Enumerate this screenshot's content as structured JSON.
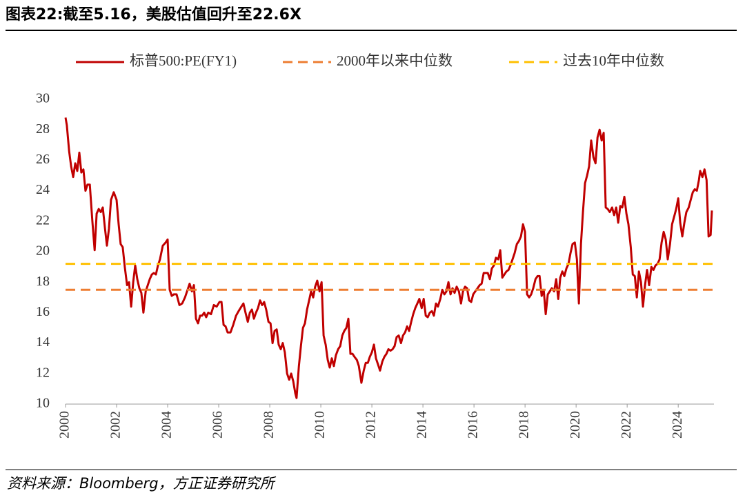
{
  "title": "图表22:截至5.16，美股估值回升至22.6X",
  "source": "资料来源：Bloomberg，方正证券研究所",
  "chart_data": {
    "type": "line",
    "xlim": [
      2000,
      2025.4
    ],
    "xticks": [
      2000,
      2002,
      2004,
      2006,
      2008,
      2010,
      2012,
      2014,
      2016,
      2018,
      2020,
      2022,
      2024
    ],
    "ylim": [
      10,
      30
    ],
    "yticks": [
      10,
      12,
      14,
      16,
      18,
      20,
      22,
      24,
      26,
      28,
      30
    ],
    "grid": false,
    "legend": "top",
    "series": [
      {
        "name": "标普500:PE(FY1)",
        "color": "#c00000",
        "x": [
          2000.0,
          2000.05,
          2000.14,
          2000.22,
          2000.3,
          2000.38,
          2000.46,
          2000.54,
          2000.62,
          2000.7,
          2000.78,
          2000.86,
          2000.95,
          2001.05,
          2001.14,
          2001.22,
          2001.3,
          2001.38,
          2001.46,
          2001.54,
          2001.62,
          2001.7,
          2001.78,
          2001.89,
          2002.0,
          2002.08,
          2002.16,
          2002.24,
          2002.32,
          2002.41,
          2002.49,
          2002.57,
          2002.65,
          2002.73,
          2002.81,
          2002.89,
          2002.97,
          2003.05,
          2003.14,
          2003.22,
          2003.3,
          2003.38,
          2003.46,
          2003.54,
          2003.62,
          2003.7,
          2003.81,
          2003.92,
          2004.0,
          2004.08,
          2004.16,
          2004.24,
          2004.35,
          2004.46,
          2004.57,
          2004.68,
          2004.78,
          2004.86,
          2004.95,
          2005.03,
          2005.11,
          2005.19,
          2005.27,
          2005.35,
          2005.43,
          2005.51,
          2005.59,
          2005.7,
          2005.81,
          2005.92,
          2006.03,
          2006.11,
          2006.19,
          2006.27,
          2006.35,
          2006.46,
          2006.57,
          2006.68,
          2006.78,
          2006.89,
          2006.97,
          2007.05,
          2007.14,
          2007.22,
          2007.3,
          2007.38,
          2007.46,
          2007.54,
          2007.62,
          2007.7,
          2007.78,
          2007.86,
          2007.95,
          2008.03,
          2008.11,
          2008.19,
          2008.27,
          2008.35,
          2008.43,
          2008.51,
          2008.59,
          2008.68,
          2008.76,
          2008.84,
          2008.92,
          2009.0,
          2009.05,
          2009.14,
          2009.22,
          2009.3,
          2009.38,
          2009.46,
          2009.54,
          2009.62,
          2009.7,
          2009.78,
          2009.86,
          2009.95,
          2010.03,
          2010.11,
          2010.19,
          2010.27,
          2010.35,
          2010.43,
          2010.51,
          2010.59,
          2010.68,
          2010.76,
          2010.84,
          2010.92,
          2011.0,
          2011.08,
          2011.16,
          2011.24,
          2011.32,
          2011.41,
          2011.49,
          2011.59,
          2011.68,
          2011.76,
          2011.84,
          2011.92,
          2012.0,
          2012.08,
          2012.16,
          2012.24,
          2012.32,
          2012.41,
          2012.49,
          2012.57,
          2012.65,
          2012.73,
          2012.81,
          2012.89,
          2012.97,
          2013.05,
          2013.14,
          2013.22,
          2013.3,
          2013.38,
          2013.46,
          2013.54,
          2013.62,
          2013.7,
          2013.78,
          2013.86,
          2013.95,
          2014.03,
          2014.11,
          2014.19,
          2014.27,
          2014.35,
          2014.43,
          2014.51,
          2014.59,
          2014.68,
          2014.76,
          2014.84,
          2014.92,
          2015.0,
          2015.08,
          2015.16,
          2015.24,
          2015.32,
          2015.41,
          2015.49,
          2015.57,
          2015.65,
          2015.73,
          2015.81,
          2015.89,
          2015.97,
          2016.05,
          2016.14,
          2016.22,
          2016.3,
          2016.38,
          2016.46,
          2016.54,
          2016.62,
          2016.7,
          2016.78,
          2016.86,
          2016.95,
          2017.03,
          2017.11,
          2017.19,
          2017.27,
          2017.35,
          2017.43,
          2017.51,
          2017.59,
          2017.68,
          2017.76,
          2017.84,
          2017.92,
          2018.0,
          2018.08,
          2018.16,
          2018.24,
          2018.32,
          2018.41,
          2018.49,
          2018.57,
          2018.65,
          2018.73,
          2018.81,
          2018.89,
          2018.97,
          2019.05,
          2019.14,
          2019.22,
          2019.3,
          2019.38,
          2019.46,
          2019.54,
          2019.62,
          2019.7,
          2019.78,
          2019.86,
          2019.95,
          2020.03,
          2020.11,
          2020.19,
          2020.27,
          2020.35,
          2020.43,
          2020.51,
          2020.59,
          2020.68,
          2020.76,
          2020.84,
          2020.92,
          2021.0,
          2021.08,
          2021.16,
          2021.24,
          2021.32,
          2021.41,
          2021.49,
          2021.57,
          2021.65,
          2021.73,
          2021.81,
          2021.89,
          2021.97,
          2022.05,
          2022.14,
          2022.22,
          2022.3,
          2022.38,
          2022.46,
          2022.54,
          2022.62,
          2022.7,
          2022.78,
          2022.86,
          2022.95,
          2023.03,
          2023.11,
          2023.19,
          2023.27,
          2023.35,
          2023.43,
          2023.51,
          2023.59,
          2023.68,
          2023.76,
          2023.84,
          2023.92,
          2024.0,
          2024.08,
          2024.16,
          2024.24,
          2024.32,
          2024.41,
          2024.49,
          2024.57,
          2024.65,
          2024.73,
          2024.81,
          2024.86,
          2024.95,
          2025.03,
          2025.11,
          2025.19,
          2025.27,
          2025.32
        ],
        "values": [
          28.8,
          28.3,
          26.6,
          25.6,
          24.9,
          25.8,
          25.3,
          26.5,
          25.2,
          25.4,
          24.0,
          24.4,
          24.4,
          22.0,
          20.1,
          22.5,
          22.8,
          22.6,
          22.9,
          21.6,
          20.4,
          21.5,
          23.4,
          23.9,
          23.4,
          21.8,
          20.5,
          20.3,
          19.0,
          17.8,
          18.0,
          16.4,
          18.0,
          19.1,
          18.2,
          17.6,
          17.3,
          16.0,
          17.4,
          17.8,
          18.2,
          18.5,
          18.6,
          18.5,
          19.1,
          19.5,
          20.4,
          20.6,
          20.8,
          17.5,
          17.1,
          17.2,
          17.2,
          16.5,
          16.6,
          17.0,
          17.5,
          17.9,
          17.4,
          17.8,
          15.6,
          15.3,
          15.8,
          15.8,
          16.0,
          15.7,
          16.0,
          15.9,
          16.5,
          16.4,
          16.7,
          16.7,
          15.2,
          15.1,
          14.7,
          14.7,
          15.2,
          15.8,
          16.1,
          16.4,
          16.6,
          16.0,
          15.4,
          16.0,
          16.2,
          15.6,
          16.0,
          16.3,
          16.8,
          16.5,
          16.7,
          16.2,
          15.4,
          15.3,
          14.0,
          14.8,
          14.9,
          13.9,
          13.6,
          14.0,
          13.4,
          12.0,
          11.6,
          12.0,
          11.5,
          10.7,
          10.4,
          12.5,
          13.8,
          15.0,
          15.3,
          16.2,
          16.8,
          17.4,
          17.0,
          17.7,
          18.1,
          17.4,
          18.0,
          14.5,
          13.9,
          12.9,
          12.4,
          13.0,
          12.5,
          13.2,
          13.6,
          13.8,
          14.5,
          14.8,
          15.0,
          15.6,
          13.3,
          13.3,
          13.1,
          12.9,
          12.5,
          11.4,
          12.2,
          12.7,
          12.7,
          13.1,
          13.4,
          13.9,
          13.0,
          12.6,
          12.2,
          12.8,
          13.1,
          13.3,
          13.6,
          13.5,
          13.6,
          13.8,
          14.4,
          14.5,
          14.0,
          14.5,
          14.7,
          15.1,
          14.8,
          15.4,
          15.9,
          16.3,
          16.6,
          16.9,
          16.3,
          16.9,
          15.8,
          15.7,
          16.0,
          16.1,
          15.8,
          16.6,
          16.4,
          16.9,
          17.5,
          17.2,
          17.4,
          18.0,
          17.2,
          17.6,
          17.3,
          17.7,
          17.4,
          16.6,
          17.4,
          17.7,
          17.6,
          16.8,
          16.7,
          17.2,
          17.4,
          17.6,
          17.8,
          17.9,
          18.6,
          18.6,
          18.6,
          18.2,
          18.9,
          19.1,
          19.6,
          19.5,
          20.1,
          18.3,
          18.5,
          18.7,
          18.8,
          19.1,
          19.5,
          19.9,
          20.5,
          20.7,
          21.0,
          21.8,
          21.3,
          17.2,
          17.0,
          17.2,
          17.6,
          18.2,
          18.4,
          18.4,
          17.1,
          17.5,
          15.9,
          17.2,
          17.4,
          17.6,
          17.4,
          18.2,
          16.9,
          18.3,
          18.7,
          18.4,
          18.9,
          19.2,
          19.9,
          20.5,
          20.6,
          19.5,
          16.6,
          20.5,
          22.6,
          24.5,
          25.0,
          25.6,
          27.3,
          26.2,
          25.8,
          27.5,
          28.0,
          27.3,
          27.8,
          22.9,
          22.8,
          22.6,
          22.9,
          22.4,
          22.9,
          21.9,
          23.0,
          22.9,
          23.6,
          22.5,
          21.8,
          20.3,
          18.5,
          18.4,
          17.0,
          18.7,
          18.0,
          16.4,
          17.8,
          18.8,
          17.8,
          19.0,
          18.8,
          19.1,
          19.2,
          19.5,
          20.6,
          21.3,
          20.8,
          19.5,
          20.5,
          21.8,
          22.3,
          22.8,
          23.5,
          21.9,
          21.0,
          21.9,
          22.6,
          22.9,
          23.4,
          23.9,
          24.1,
          24.0,
          24.7,
          25.3,
          24.9,
          25.4,
          24.7,
          21.0,
          21.1,
          22.7
        ]
      },
      {
        "name": "2000年以来中位数",
        "color": "#ed7d31",
        "value": 17.5,
        "dashed": true
      },
      {
        "name": "过去10年中位数",
        "color": "#ffc000",
        "value": 19.2,
        "dashed": true
      }
    ]
  }
}
